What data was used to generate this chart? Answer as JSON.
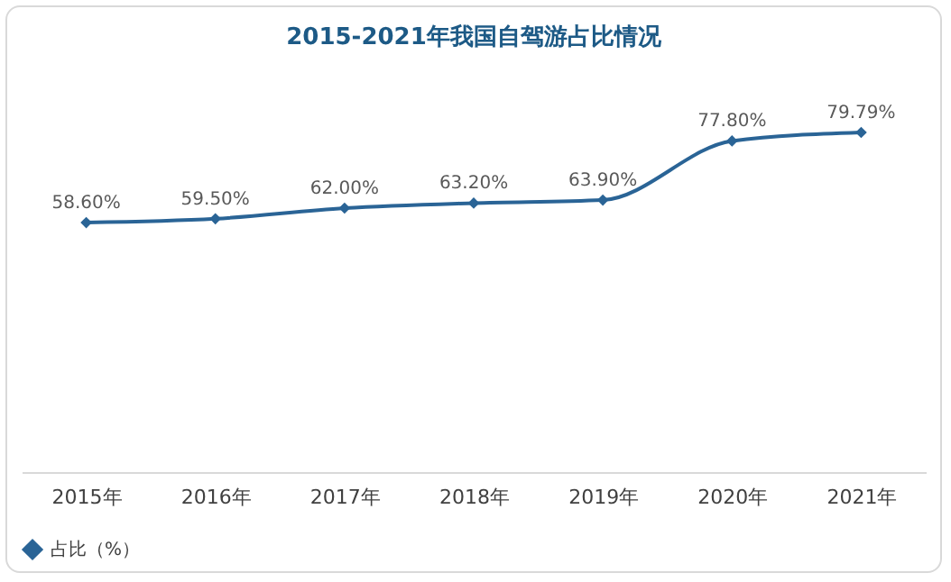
{
  "chart_data": {
    "type": "line",
    "title": "2015-2021年我国自驾游占比情况",
    "categories": [
      "2015年",
      "2016年",
      "2017年",
      "2018年",
      "2019年",
      "2020年",
      "2021年"
    ],
    "series": [
      {
        "name": "占比（%）",
        "color": "#2a6496",
        "values": [
          58.6,
          59.5,
          62.0,
          63.2,
          63.9,
          77.8,
          79.79
        ],
        "value_labels": [
          "58.60%",
          "59.50%",
          "62.00%",
          "63.20%",
          "63.90%",
          "77.80%",
          "79.79%"
        ]
      }
    ],
    "marker": "diamond",
    "legend": "bottom",
    "grid": false
  }
}
